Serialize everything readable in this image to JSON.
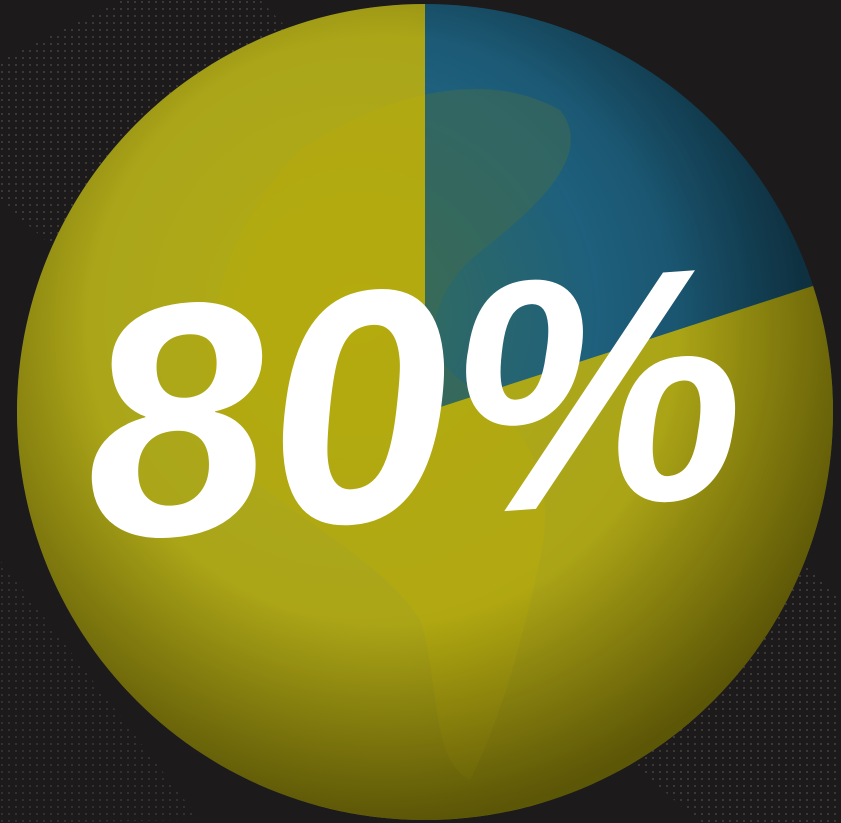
{
  "chart_data": {
    "type": "pie",
    "values": [
      80,
      20
    ],
    "value_labels": [
      "80%",
      null
    ],
    "colors": [
      "#d4bd00",
      "#1d6b8c"
    ],
    "direction": "counterclockwise"
  }
}
